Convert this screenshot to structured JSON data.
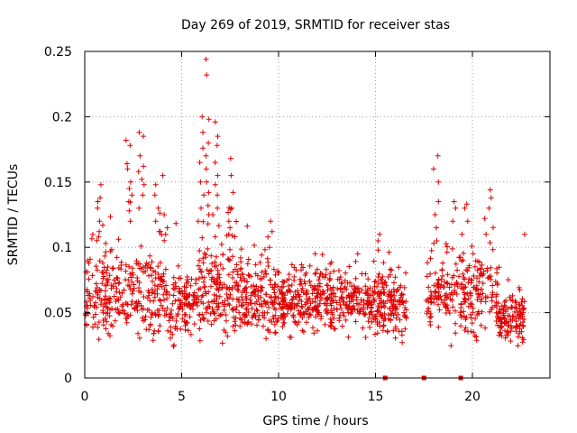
{
  "chart_data": {
    "type": "scatter",
    "title": "Day 269 of 2019, SRMTID for receiver stas",
    "xlabel": "GPS time / hours",
    "ylabel": "SRMTID / TECUs",
    "xlim": [
      0,
      24
    ],
    "ylim": [
      0,
      0.25
    ],
    "x_ticks": [
      0,
      5,
      10,
      15,
      20
    ],
    "x_tick_labels": [
      "0",
      "5",
      "10",
      "15",
      "20"
    ],
    "y_ticks": [
      0,
      0.05,
      0.1,
      0.15,
      0.2,
      0.25
    ],
    "y_tick_labels": [
      "0",
      "0.05",
      "0.1",
      "0.15",
      "0.2",
      "0.25"
    ],
    "grid": true,
    "marker": "plus",
    "color": "#e00000",
    "segments": [
      {
        "start": 0.0,
        "end": 4.3,
        "base": 0.065,
        "spread": 0.022,
        "count": 300
      },
      {
        "start": 4.3,
        "end": 5.8,
        "base": 0.055,
        "spread": 0.017,
        "count": 110
      },
      {
        "start": 5.8,
        "end": 8.1,
        "base": 0.068,
        "spread": 0.022,
        "count": 190
      },
      {
        "start": 8.1,
        "end": 10.0,
        "base": 0.06,
        "spread": 0.018,
        "count": 160
      },
      {
        "start": 10.0,
        "end": 13.0,
        "base": 0.06,
        "spread": 0.015,
        "count": 260
      },
      {
        "start": 13.0,
        "end": 15.5,
        "base": 0.058,
        "spread": 0.014,
        "count": 210
      },
      {
        "start": 15.5,
        "end": 16.6,
        "base": 0.055,
        "spread": 0.016,
        "count": 90
      },
      {
        "start": 17.6,
        "end": 19.5,
        "base": 0.065,
        "spread": 0.02,
        "count": 120
      },
      {
        "start": 19.5,
        "end": 21.3,
        "base": 0.065,
        "spread": 0.02,
        "count": 130
      },
      {
        "start": 21.3,
        "end": 22.7,
        "base": 0.045,
        "spread": 0.012,
        "count": 120
      }
    ],
    "peaks": [
      {
        "x": 0.8,
        "values": [
          0.148,
          0.138,
          0.135,
          0.13,
          0.12,
          0.117,
          0.112,
          0.108
        ]
      },
      {
        "x": 2.3,
        "values": [
          0.182,
          0.178,
          0.164,
          0.16,
          0.15,
          0.145,
          0.14,
          0.135,
          0.128,
          0.12
        ]
      },
      {
        "x": 2.9,
        "values": [
          0.188,
          0.185,
          0.17,
          0.162,
          0.158,
          0.152,
          0.148,
          0.14,
          0.13
        ]
      },
      {
        "x": 3.7,
        "values": [
          0.148,
          0.14,
          0.13,
          0.12,
          0.112
        ]
      },
      {
        "x": 4.2,
        "values": [
          0.155,
          0.125,
          0.115,
          0.11
        ]
      },
      {
        "x": 6.0,
        "values": [
          0.2,
          0.188,
          0.176,
          0.165,
          0.15,
          0.14,
          0.13,
          0.12
        ]
      },
      {
        "x": 6.35,
        "values": [
          0.244,
          0.232,
          0.198,
          0.18,
          0.17,
          0.16,
          0.15,
          0.142,
          0.132,
          0.125,
          0.118
        ]
      },
      {
        "x": 6.7,
        "values": [
          0.196,
          0.185,
          0.178,
          0.165,
          0.155,
          0.148,
          0.14,
          0.13,
          0.125
        ]
      },
      {
        "x": 7.6,
        "values": [
          0.168,
          0.155,
          0.142,
          0.13,
          0.12,
          0.115,
          0.11
        ]
      },
      {
        "x": 9.5,
        "values": [
          0.12,
          0.112,
          0.108,
          0.1
        ]
      },
      {
        "x": 15.2,
        "values": [
          0.11,
          0.105
        ]
      },
      {
        "x": 18.1,
        "values": [
          0.17,
          0.16,
          0.15,
          0.135,
          0.125,
          0.115,
          0.105
        ]
      },
      {
        "x": 19.1,
        "values": [
          0.135,
          0.13,
          0.12
        ]
      },
      {
        "x": 19.6,
        "values": [
          0.13,
          0.12,
          0.11
        ]
      },
      {
        "x": 20.8,
        "values": [
          0.144,
          0.138,
          0.13,
          0.122,
          0.11
        ]
      },
      {
        "x": 22.7,
        "values": [
          0.11
        ]
      }
    ],
    "zero_points": [
      15.5,
      17.5,
      19.4
    ]
  }
}
